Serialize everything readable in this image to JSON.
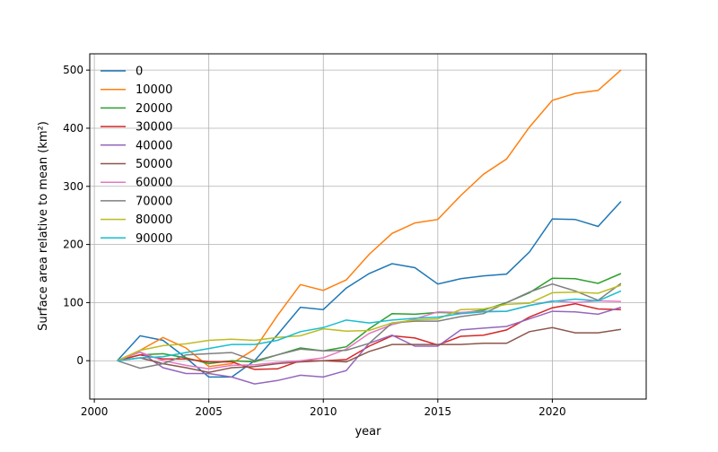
{
  "chart_data": {
    "type": "line",
    "title": "",
    "xlabel": "year",
    "ylabel": "Surface area relative to mean (km²)",
    "xlim": [
      1999.8,
      2024.1
    ],
    "ylim": [
      -66,
      528
    ],
    "xticks": [
      2000,
      2005,
      2010,
      2015,
      2020
    ],
    "yticks": [
      0,
      100,
      200,
      300,
      400,
      500
    ],
    "grid": true,
    "legend_placement": "top-left",
    "x": [
      2001,
      2002,
      2003,
      2004,
      2005,
      2006,
      2007,
      2008,
      2009,
      2010,
      2011,
      2012,
      2013,
      2014,
      2015,
      2016,
      2017,
      2018,
      2019,
      2020,
      2021,
      2022,
      2023
    ],
    "series": [
      {
        "name": "0",
        "color": "#1f77b4",
        "values": [
          0,
          43,
          35,
          5,
          -28,
          -28,
          0,
          45,
          92,
          88,
          125,
          150,
          167,
          160,
          132,
          141,
          146,
          149,
          187,
          244,
          243,
          231,
          274
        ]
      },
      {
        "name": "10000",
        "color": "#ff7f0e",
        "values": [
          0,
          18,
          40,
          22,
          -10,
          -5,
          20,
          78,
          131,
          121,
          139,
          183,
          219,
          237,
          243,
          284,
          321,
          347,
          402,
          448,
          460,
          465,
          500
        ]
      },
      {
        "name": "20000",
        "color": "#2ca02c",
        "values": [
          0,
          10,
          12,
          5,
          -5,
          0,
          -2,
          10,
          22,
          17,
          24,
          55,
          81,
          80,
          83,
          82,
          87,
          100,
          117,
          142,
          141,
          133,
          150
        ]
      },
      {
        "name": "30000",
        "color": "#d62728",
        "values": [
          0,
          10,
          3,
          3,
          -2,
          -2,
          -15,
          -14,
          0,
          0,
          2,
          25,
          43,
          39,
          27,
          42,
          44,
          53,
          75,
          91,
          98,
          89,
          88
        ]
      },
      {
        "name": "40000",
        "color": "#9467bd",
        "values": [
          0,
          15,
          -12,
          -22,
          -22,
          -28,
          -40,
          -34,
          -25,
          -28,
          -17,
          30,
          44,
          25,
          25,
          53,
          56,
          59,
          72,
          85,
          84,
          80,
          92
        ]
      },
      {
        "name": "50000",
        "color": "#8c564b",
        "values": [
          0,
          5,
          -5,
          -12,
          -20,
          -12,
          -10,
          -5,
          -2,
          0,
          -2,
          16,
          28,
          28,
          28,
          28,
          30,
          30,
          50,
          57,
          48,
          48,
          54
        ]
      },
      {
        "name": "60000",
        "color": "#e377c2",
        "values": [
          0,
          15,
          0,
          -8,
          -14,
          -8,
          -7,
          -3,
          0,
          5,
          20,
          47,
          62,
          72,
          84,
          83,
          85,
          85,
          95,
          103,
          100,
          103,
          102
        ]
      },
      {
        "name": "70000",
        "color": "#7f7f7f",
        "values": [
          0,
          -13,
          -5,
          10,
          12,
          14,
          0,
          10,
          20,
          17,
          18,
          30,
          65,
          68,
          68,
          76,
          81,
          100,
          118,
          132,
          120,
          104,
          133
        ]
      },
      {
        "name": "80000",
        "color": "#bcbd22",
        "values": [
          0,
          18,
          26,
          29,
          35,
          37,
          35,
          40,
          43,
          55,
          51,
          52,
          65,
          70,
          72,
          88,
          89,
          97,
          99,
          117,
          118,
          116,
          130
        ]
      },
      {
        "name": "90000",
        "color": "#17becf",
        "values": [
          0,
          5,
          7,
          14,
          21,
          28,
          28,
          35,
          50,
          57,
          70,
          65,
          70,
          73,
          75,
          81,
          84,
          85,
          95,
          102,
          106,
          103,
          120
        ]
      }
    ]
  }
}
